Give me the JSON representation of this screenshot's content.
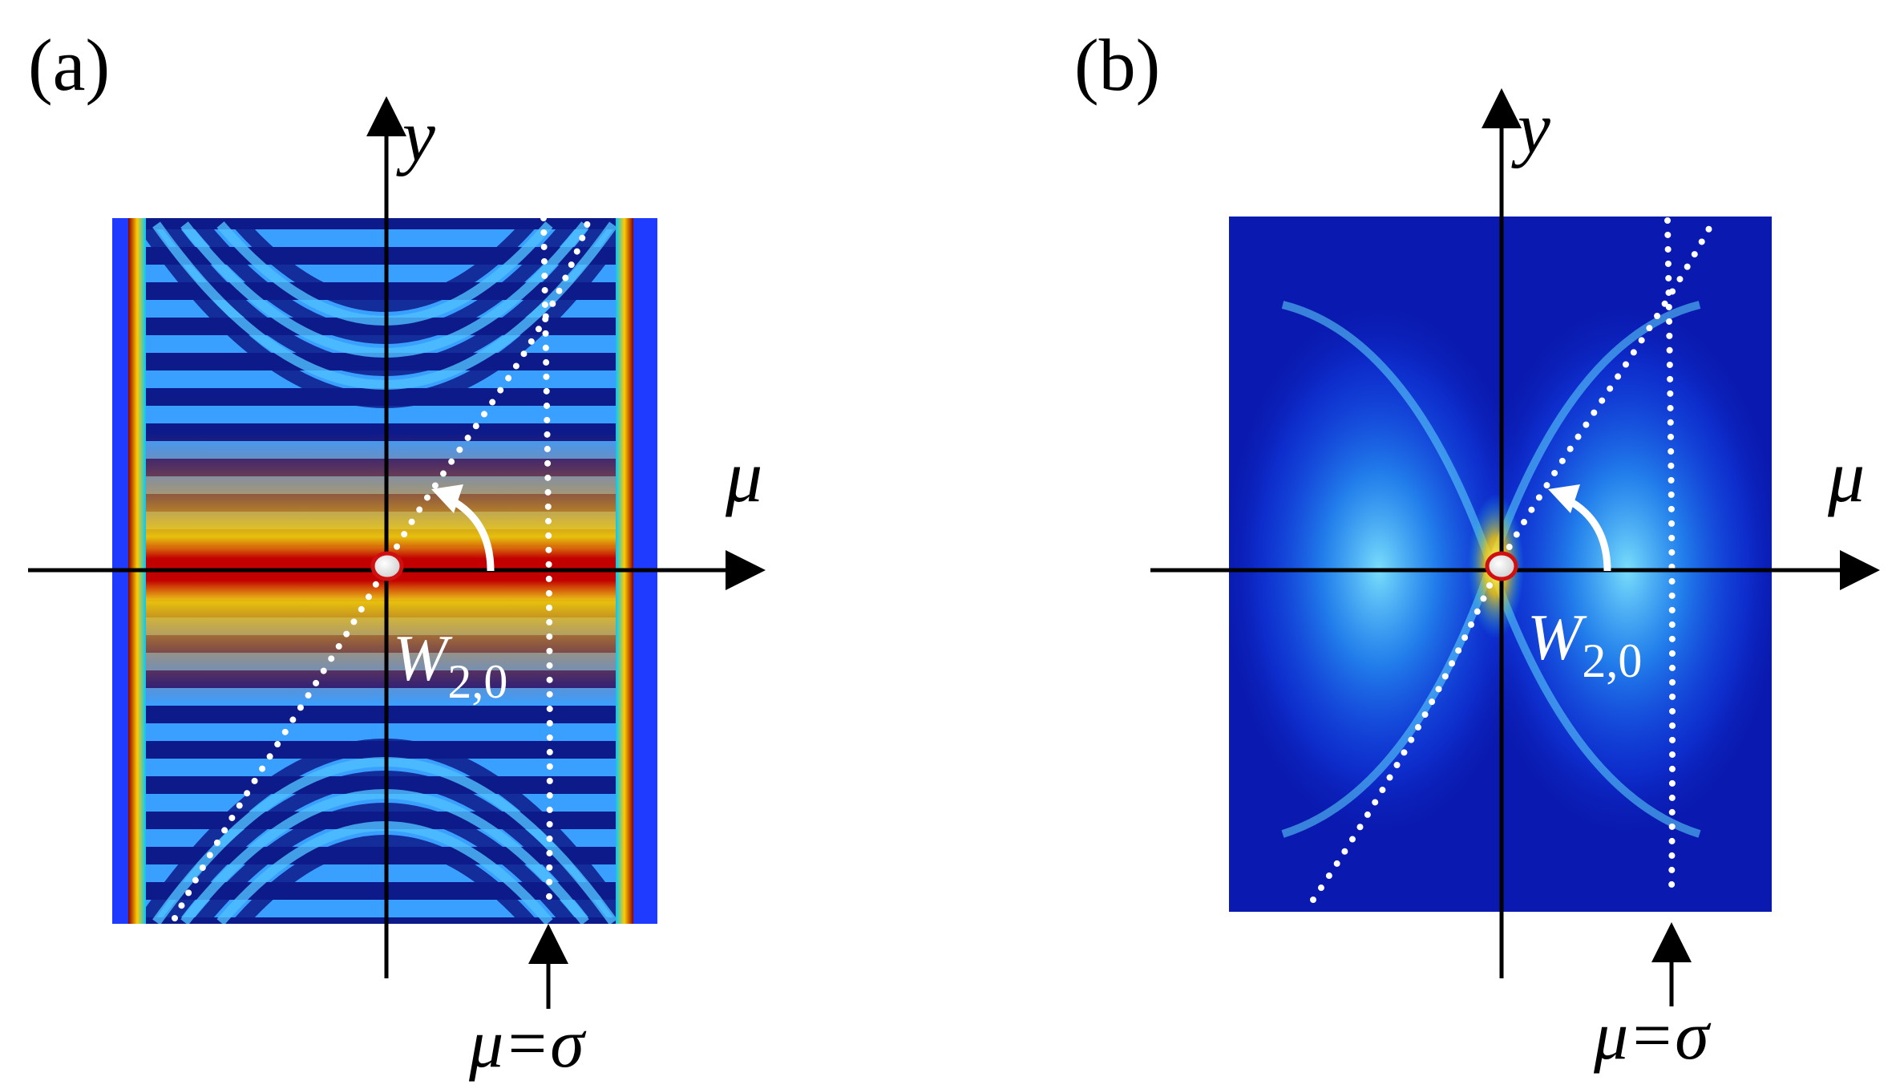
{
  "panels": [
    {
      "label": "(a)",
      "y_axis_label": "y",
      "x_axis_label": "μ",
      "point_label_main": "W",
      "point_label_sub": "2,0",
      "marker_label": "μ=σ"
    },
    {
      "label": "(b)",
      "y_axis_label": "y",
      "x_axis_label": "μ",
      "point_label_main": "W",
      "point_label_sub": "2,0",
      "marker_label": "μ=σ"
    }
  ],
  "colors": {
    "panel_a_background": "#1f3bff",
    "panel_a_hot": "#b00000",
    "panel_b_background": "#0a1ab0",
    "panel_b_glow": "#33d6ff",
    "axes": "#000000",
    "dotted_curves": "#ffffff",
    "point_ring": "#d01010"
  }
}
